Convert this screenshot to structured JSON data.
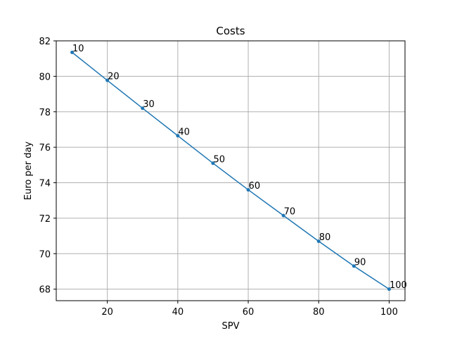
{
  "chart_data": {
    "type": "line",
    "title": "Costs",
    "xlabel": "SPV",
    "ylabel": "Euro per day",
    "xlim": [
      5.5,
      104.5
    ],
    "ylim": [
      67.35,
      82.0
    ],
    "xticks": [
      20,
      40,
      60,
      80,
      100
    ],
    "yticks": [
      68,
      70,
      72,
      74,
      76,
      78,
      80,
      82
    ],
    "grid": true,
    "series": [
      {
        "color": "#1f77b4",
        "marker": "point",
        "x": [
          10,
          20,
          30,
          40,
          50,
          60,
          70,
          80,
          90,
          100
        ],
        "y": [
          81.35,
          79.77,
          78.2,
          76.65,
          75.1,
          73.6,
          72.15,
          70.7,
          69.3,
          68.0
        ],
        "point_labels": [
          "10",
          "20",
          "30",
          "40",
          "50",
          "60",
          "70",
          "80",
          "90",
          "100"
        ]
      }
    ]
  }
}
